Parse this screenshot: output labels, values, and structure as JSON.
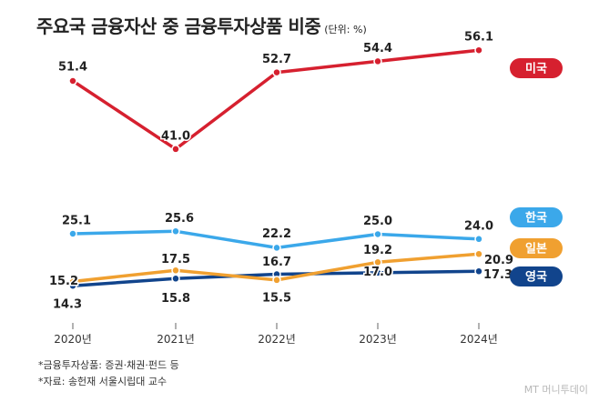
{
  "title": "주요국 금융자산 중 금융투자상품 비중",
  "unit": "(단위: %)",
  "footnotes": [
    "*금융투자상품: 증권·채권·펀드 등",
    "*자료: 송헌재 서울시립대 교수"
  ],
  "credit": "MT 머니투데이",
  "chart_data": {
    "type": "line",
    "title": "주요국 금융자산 중 금융투자상품 비중",
    "unit": "(단위: %)",
    "categories": [
      "2020년",
      "2021년",
      "2022년",
      "2023년",
      "2024년"
    ],
    "legend_placement": "right (labels at line ends)",
    "grid": false,
    "series": [
      {
        "name": "미국",
        "values": [
          51.4,
          41.0,
          52.7,
          54.4,
          56.1
        ],
        "labels": [
          "51.4",
          "41.0",
          "52.7",
          "54.4",
          "56.1"
        ],
        "color": "#d6202f"
      },
      {
        "name": "한국",
        "values": [
          25.1,
          25.6,
          22.2,
          25.0,
          24.0
        ],
        "labels": [
          "25.1",
          "25.6",
          "22.2",
          "25.0",
          "24.0"
        ],
        "color": "#3ba8ea"
      },
      {
        "name": "일본",
        "values": [
          15.2,
          17.5,
          15.5,
          19.2,
          20.9
        ],
        "labels": [
          "15.2",
          "17.5",
          "15.5",
          "19.2",
          "20.9"
        ],
        "color": "#f0a030"
      },
      {
        "name": "영국",
        "values": [
          14.3,
          15.8,
          16.7,
          17.0,
          17.3
        ],
        "labels": [
          "14.3",
          "15.8",
          "16.7",
          "17.0",
          "17.3"
        ],
        "color": "#11448c"
      }
    ]
  }
}
